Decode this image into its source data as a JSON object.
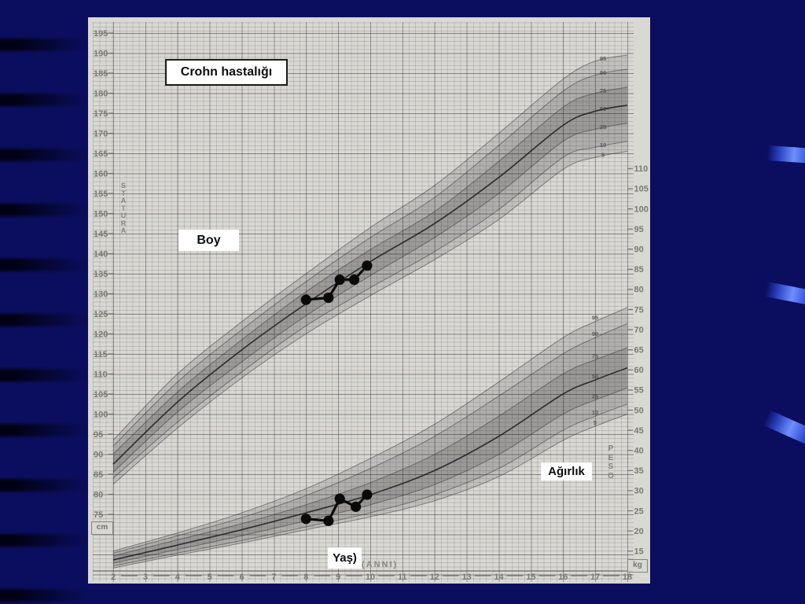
{
  "slide": {
    "background_color": "#0b0e5e",
    "streak_color": "#6e8ffc",
    "paper_color": "#d9d8d3"
  },
  "annotations": {
    "title": "Crohn hastalığı",
    "height_label": "Boy",
    "weight_label": "Ağırlık",
    "age_label": "Yaş)"
  },
  "chart_data": {
    "type": "line",
    "title": "Crohn hastalığı",
    "description": "Pediatric growth chart (stature and weight percentile curves, boys 2-18 y) with patient height and weight measurements plotted",
    "x_axis": {
      "label": "(ANNI)",
      "min": 2,
      "max": 18,
      "ticks": [
        2,
        3,
        4,
        5,
        6,
        7,
        8,
        9,
        10,
        11,
        12,
        13,
        14,
        15,
        16,
        17,
        18
      ]
    },
    "left_axis": {
      "title": "STATURA",
      "unit": "cm",
      "min": 70,
      "max": 197,
      "ticks": [
        195,
        190,
        185,
        180,
        175,
        170,
        165,
        160,
        155,
        150,
        145,
        140,
        135,
        130,
        125,
        120,
        115,
        110,
        105,
        100,
        95,
        90,
        85,
        80,
        75
      ]
    },
    "right_axis": {
      "title": "PESO",
      "unit": "kg",
      "min": 13,
      "max": 112,
      "ticks": [
        110,
        105,
        100,
        95,
        90,
        85,
        80,
        75,
        70,
        65,
        60,
        55,
        50,
        45,
        40,
        35,
        30,
        25,
        20,
        15
      ]
    },
    "percentiles": [
      "95",
      "90",
      "75",
      "50",
      "25",
      "10",
      "5"
    ],
    "height_curves": {
      "ages": [
        2,
        4,
        6,
        8,
        10,
        12,
        14,
        16,
        17,
        18
      ],
      "p95": [
        93.5,
        110,
        123,
        135,
        146.5,
        157,
        170,
        183.5,
        188,
        189.5
      ],
      "p90": [
        92,
        108,
        121,
        133,
        144,
        154,
        167,
        180.5,
        184.5,
        186
      ],
      "p75": [
        90,
        105.5,
        118.5,
        130.5,
        141,
        150.5,
        163,
        176.5,
        180,
        181.5
      ],
      "p50": [
        87.5,
        103,
        116,
        127.5,
        138,
        147.5,
        159,
        172,
        175.5,
        177
      ],
      "p25": [
        85.5,
        100.5,
        113,
        124.5,
        134.5,
        144,
        155,
        168,
        171,
        172.5
      ],
      "p10": [
        84,
        98,
        110.5,
        122,
        131.5,
        140.5,
        151,
        164,
        166.5,
        168
      ],
      "p5": [
        82.5,
        96.5,
        109,
        120,
        129.5,
        138.5,
        148.5,
        161,
        164,
        165.5
      ]
    },
    "weight_curves": {
      "ages": [
        2,
        4,
        6,
        8,
        10,
        12,
        14,
        16,
        17,
        18
      ],
      "p95": [
        15,
        19.5,
        24.5,
        30.5,
        38,
        46.5,
        57,
        68,
        72,
        75.5
      ],
      "p90": [
        14.5,
        18.8,
        23.3,
        28.8,
        35.5,
        43.5,
        53.5,
        64,
        68,
        71.5
      ],
      "p75": [
        13.8,
        17.8,
        21.8,
        26.5,
        32,
        39,
        48.5,
        59,
        62.5,
        65.5
      ],
      "p50": [
        12.8,
        16.5,
        20.3,
        24.5,
        29,
        35,
        43.5,
        54,
        57.5,
        60.5
      ],
      "p25": [
        12,
        15.4,
        18.8,
        22.5,
        26.5,
        31.5,
        39,
        49,
        52.5,
        55.5
      ],
      "p10": [
        11.3,
        14.5,
        17.6,
        21,
        24.5,
        29,
        35.5,
        45,
        48.5,
        51.5
      ],
      "p5": [
        10.8,
        14,
        17,
        20.3,
        23.5,
        27.5,
        33.5,
        42.5,
        46,
        49
      ]
    },
    "patient_height": {
      "ages": [
        8.0,
        8.7,
        9.05,
        9.5,
        9.9
      ],
      "values_cm": [
        128.5,
        129,
        133.5,
        133.5,
        137
      ]
    },
    "patient_weight": {
      "ages": [
        8.0,
        8.7,
        9.05,
        9.55,
        9.9
      ],
      "values_kg": [
        23,
        22.5,
        28,
        26,
        29
      ]
    }
  }
}
